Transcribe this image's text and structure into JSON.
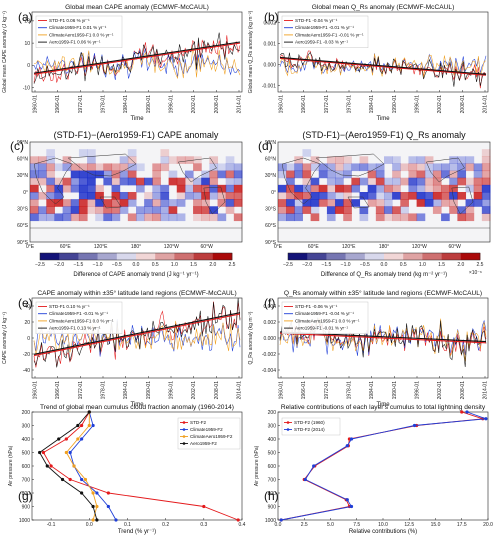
{
  "colors": {
    "std": "#e41a1c",
    "climate": "#1f3fd8",
    "climaero": "#f0a020",
    "aero": "#111111",
    "teal": "#2a9d8f",
    "trend": "#111111"
  },
  "panels": {
    "a": {
      "label": "(a)",
      "title": "Global mean CAPE anomaly (ECMWF-McCAUL)",
      "ylabel": "Global mean CAPE anomaly (J kg⁻¹)",
      "xlabel": "Time",
      "yticks": [
        "-10",
        "0",
        "10",
        "20"
      ],
      "ymin": -12,
      "ymax": 24,
      "xticks": [
        "1960-01",
        "1966-01",
        "1972-01",
        "1978-01",
        "1984-01",
        "1990-01",
        "1996-01",
        "2002-01",
        "2008-01",
        "2014-01"
      ],
      "legend": [
        "STD-F1 0.06 % yr⁻¹",
        "Climate1959-F1 0.01 % yr⁻¹",
        "ClimateAero1959-F1 0.0 % yr⁻¹",
        "Aero1959-F1 0.06 % yr⁻¹"
      ],
      "trend": [
        -4,
        10
      ],
      "amp": 5
    },
    "b": {
      "label": "(b)",
      "title": "Global mean Q_Rs anomaly (ECMWF-McCAUL)",
      "ylabel": "Global mean Q_Rs anomaly (kg m⁻²)",
      "xlabel": "Time",
      "yticks": [
        "-0.001",
        "0.000",
        "0.001",
        "0.002"
      ],
      "ymin": -0.0013,
      "ymax": 0.0025,
      "xticks": [
        "1960-01",
        "1966-01",
        "1972-01",
        "1978-01",
        "1984-01",
        "1990-01",
        "1996-01",
        "2002-01",
        "2008-01",
        "2014-01"
      ],
      "legend": [
        "STD-F1 -0.04 % yr⁻¹",
        "Climate1959-F1 -0.01 % yr⁻¹",
        "ClimateAero1959-F1 -0.01 % yr⁻¹",
        "Aero1959-F1 -0.03 % yr⁻¹"
      ],
      "trend": [
        0.0003,
        -0.0005
      ],
      "amp": 0.0004
    },
    "c": {
      "label": "(c)",
      "title": "(STD-F1)−(Aero1959-F1) CAPE anomaly",
      "cbar_label": "Difference of CAPE anomaly trend (J kg⁻¹ yr⁻¹)",
      "cbar_ticks": [
        "−2.5",
        "−2.0",
        "−1.5",
        "−1.0",
        "−0.5",
        "0.0",
        "0.5",
        "1.0",
        "1.5",
        "2.0",
        "2.5"
      ]
    },
    "d": {
      "label": "(d)",
      "title": "(STD-F1)−(Aero1959-F1) Q_Rs anomaly",
      "cbar_label": "Difference of Q_Rs anomaly trend (kg m⁻² yr⁻¹)",
      "cbar_ticks": [
        "−2.5",
        "−2.0",
        "−1.5",
        "−1.0",
        "−0.5",
        "0.0",
        "0.5",
        "1.0",
        "1.5",
        "2.0",
        "2.5"
      ],
      "cbar_exp": "×10⁻⁶"
    },
    "map": {
      "lat_ticks": [
        "90°N",
        "60°N",
        "30°N",
        "0°",
        "30°S",
        "60°S",
        "90°S"
      ],
      "lon_ticks": [
        "0°E",
        "60°E",
        "120°E",
        "180°",
        "120°W",
        "60°W"
      ]
    },
    "e": {
      "label": "(e)",
      "title": "CAPE anomaly within ±35° latitude land regions (ECMWF-McCAUL)",
      "ylabel": "CAPE anomaly (J kg⁻¹)",
      "xlabel": "Time",
      "yticks": [
        "-40",
        "-20",
        "0",
        "20",
        "40"
      ],
      "ymin": -50,
      "ymax": 50,
      "xticks": [
        "1960-01",
        "1966-01",
        "1972-01",
        "1978-01",
        "1984-01",
        "1990-01",
        "1996-01",
        "2002-01",
        "2008-01",
        "2014-01"
      ],
      "legend": [
        "STD-F1 0.10 % yr⁻¹",
        "Climate1959-F1 -0.01 % yr⁻¹",
        "ClimateAero1959-F1 0.0 % yr⁻¹",
        "Aero1959-F1 0.13 % yr⁻¹"
      ],
      "trend": [
        -22,
        30
      ],
      "amp": 16
    },
    "f": {
      "label": "(f)",
      "title": "Q_Rs anomaly within ±35° latitude land regions (ECMWF-McCAUL)",
      "ylabel": "Q_Rs anomaly (kg m⁻²)",
      "xlabel": "Time",
      "yticks": [
        "-0.004",
        "-0.002",
        "0.000",
        "0.002",
        "0.004"
      ],
      "ymin": -0.005,
      "ymax": 0.005,
      "xticks": [
        "1960-01",
        "1966-01",
        "1972-01",
        "1978-01",
        "1984-01",
        "1990-01",
        "1996-01",
        "2002-01",
        "2008-01",
        "2014-01"
      ],
      "legend": [
        "STD-F1 -0.06 % yr⁻¹",
        "Climate1959-F1 -0.04 % yr⁻¹",
        "ClimateAero1959-F1 0.0 % yr⁻¹",
        "Aero1959-F1 -0.01 % yr⁻¹"
      ],
      "trend": [
        0.0006,
        -0.0006
      ],
      "amp": 0.0016
    },
    "g": {
      "label": "(g)",
      "title": "Trend of global mean cumulus cloud fraction anomaly (1960-2014)",
      "ylabel": "Air pressure (hPa)",
      "xlabel": "Trend (% yr⁻¹)",
      "xticks": [
        "-0.1",
        "0.0",
        "0.1",
        "0.2",
        "0.3",
        "0.4"
      ],
      "yticks": [
        "200",
        "300",
        "400",
        "500",
        "600",
        "700",
        "800",
        "900",
        "1000"
      ],
      "legend": [
        "STD-F2",
        "Climate1959-F2",
        "ClimateAero1959-F2",
        "Aero1959-F2"
      ]
    },
    "h": {
      "label": "(h)",
      "title": "Relative contributions of each layer's cumulus to total lightning density",
      "ylabel": "Air pressure (hPa)",
      "xlabel": "Relative contributions (%)",
      "xticks": [
        "0.0",
        "2.5",
        "5.0",
        "7.5",
        "10.0",
        "12.5",
        "15.0",
        "17.5",
        "20.0"
      ],
      "yticks": [
        "200",
        "300",
        "400",
        "500",
        "600",
        "700",
        "800",
        "900",
        "1000"
      ],
      "legend": [
        "STD-F2 (1960)",
        "STD-F2 (2014)"
      ]
    }
  },
  "chart_data": [
    {
      "type": "line",
      "panel": "g",
      "y": [
        200,
        300,
        400,
        500,
        600,
        700,
        800,
        900,
        1000
      ],
      "xlim": [
        -0.15,
        0.4
      ],
      "ylim": [
        1000,
        200
      ],
      "series": [
        {
          "name": "STD-F2",
          "values": [
            0.0,
            -0.02,
            -0.06,
            -0.12,
            -0.1,
            -0.05,
            0.05,
            0.3,
            0.39
          ]
        },
        {
          "name": "Climate1959-F2",
          "values": [
            0.0,
            0.01,
            -0.02,
            -0.05,
            -0.04,
            -0.02,
            0.02,
            0.05,
            0.07
          ]
        },
        {
          "name": "ClimateAero1959-F2",
          "values": [
            0.0,
            0.0,
            -0.03,
            -0.06,
            -0.04,
            -0.01,
            0.01,
            0.02,
            0.01
          ]
        },
        {
          "name": "Aero1959-F2",
          "values": [
            0.0,
            -0.03,
            -0.08,
            -0.13,
            -0.11,
            -0.07,
            -0.02,
            0.01,
            0.02
          ]
        }
      ]
    },
    {
      "type": "line",
      "panel": "h",
      "y": [
        200,
        250,
        300,
        400,
        450,
        600,
        700,
        850,
        900,
        1000
      ],
      "xlim": [
        0,
        20
      ],
      "ylim": [
        1000,
        200
      ],
      "series": [
        {
          "name": "STD-F2 (1960)",
          "values": [
            17.5,
            19.5,
            13.2,
            6.8,
            6.7,
            3.5,
            2.5,
            6.5,
            6.8,
            0.3
          ]
        },
        {
          "name": "STD-F2 (2014)",
          "values": [
            18.0,
            19.8,
            13.0,
            7.0,
            6.6,
            3.4,
            2.6,
            6.6,
            7.0,
            0.3
          ]
        }
      ]
    }
  ]
}
